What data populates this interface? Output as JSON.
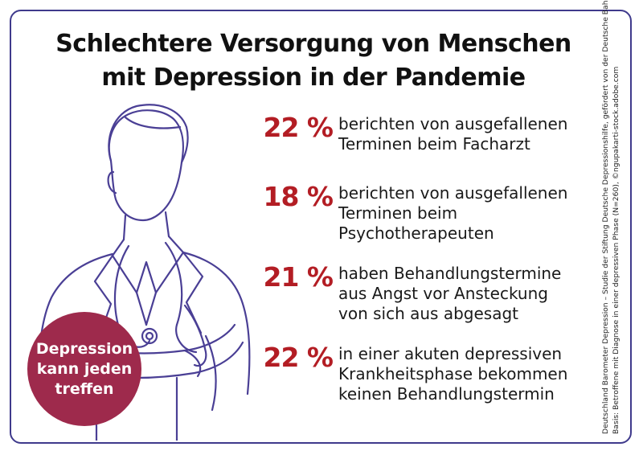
{
  "title": {
    "line1": "Schlechtere Versorgung von Menschen",
    "line2": "mit Depression in der Pandemie"
  },
  "stats": [
    {
      "percent": "22 %",
      "lines": [
        "berichten von ausgefallenen",
        "Terminen beim Facharzt"
      ]
    },
    {
      "percent": "18 %",
      "lines": [
        "berichten von ausgefallenen",
        "Terminen beim",
        "Psychotherapeuten"
      ]
    },
    {
      "percent": "21 %",
      "lines": [
        "haben Behandlungstermine",
        "aus Angst vor Ansteckung",
        "von sich aus abgesagt"
      ]
    },
    {
      "percent": "22 %",
      "lines": [
        "in einer akuten depressiven",
        "Krankheitsphase bekommen",
        "keinen Behandlungstermin"
      ]
    }
  ],
  "badge": {
    "lines": [
      "Depression",
      "kann jeden",
      "treffen"
    ]
  },
  "source": {
    "line1": "Deutschland Barometer Depression – Studie der Stiftung Deutsche Depressionshilfe, gefördert von der Deutsche Bahn Stiftung,",
    "line2": "Basis: Betroffene mit Diagnose in einer depressiven Phase (N=260), ©ngupakarti-stock.adobe.com"
  },
  "colors": {
    "frame": "#3f3a8c",
    "percent": "#b31d24",
    "badge": "#9e2a4c",
    "line_art": "#4a3f95"
  },
  "icons": {
    "illustration": "doctor-with-stethoscope-line-art"
  }
}
